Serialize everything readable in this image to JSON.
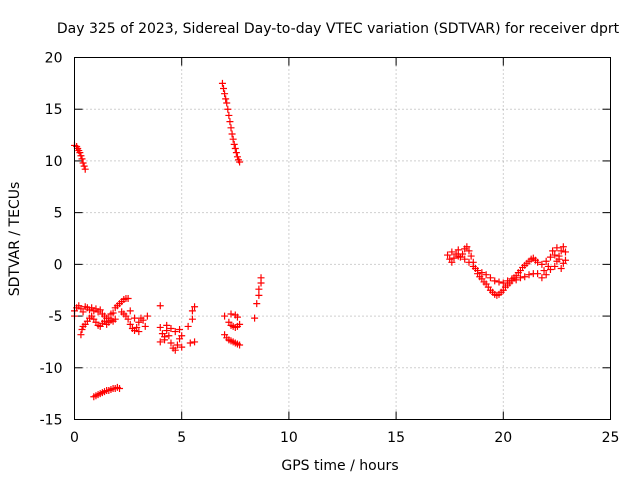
{
  "chart_data": {
    "type": "scatter",
    "title": "Day 325 of 2023, Sidereal Day-to-day VTEC variation (SDTVAR) for receiver dprt",
    "xlabel": "GPS time / hours",
    "ylabel": "SDTVAR / TECUs",
    "xlim": [
      0,
      25
    ],
    "ylim": [
      -15,
      20
    ],
    "xticks": [
      0,
      5,
      10,
      15,
      20,
      25
    ],
    "yticks": [
      -15,
      -10,
      -5,
      0,
      5,
      10,
      15,
      20
    ],
    "grid": true,
    "marker": "+",
    "color": "#ff0000",
    "series": [
      {
        "name": "SDTVAR",
        "points": [
          [
            0.0,
            11.5
          ],
          [
            0.1,
            11.4
          ],
          [
            0.15,
            11.2
          ],
          [
            0.2,
            11.0
          ],
          [
            0.25,
            10.8
          ],
          [
            0.3,
            10.5
          ],
          [
            0.35,
            10.2
          ],
          [
            0.4,
            9.8
          ],
          [
            0.45,
            9.5
          ],
          [
            0.5,
            9.2
          ],
          [
            0.0,
            -4.5
          ],
          [
            0.0,
            -5.0
          ],
          [
            0.1,
            -4.2
          ],
          [
            0.2,
            -4.0
          ],
          [
            0.3,
            -4.3
          ],
          [
            0.4,
            -4.6
          ],
          [
            0.5,
            -4.1
          ],
          [
            0.6,
            -4.2
          ],
          [
            0.7,
            -4.4
          ],
          [
            0.8,
            -4.2
          ],
          [
            0.9,
            -4.5
          ],
          [
            1.0,
            -4.3
          ],
          [
            1.1,
            -4.6
          ],
          [
            1.2,
            -4.4
          ],
          [
            1.3,
            -4.8
          ],
          [
            1.4,
            -5.0
          ],
          [
            1.5,
            -5.2
          ],
          [
            1.6,
            -5.6
          ],
          [
            1.7,
            -5.4
          ],
          [
            1.8,
            -4.7
          ],
          [
            1.9,
            -4.2
          ],
          [
            2.0,
            -4.0
          ],
          [
            2.1,
            -3.8
          ],
          [
            2.2,
            -3.6
          ],
          [
            2.3,
            -3.4
          ],
          [
            2.4,
            -3.3
          ],
          [
            2.5,
            -3.3
          ],
          [
            0.3,
            -6.8
          ],
          [
            0.35,
            -6.3
          ],
          [
            0.4,
            -6.0
          ],
          [
            0.5,
            -5.8
          ],
          [
            0.6,
            -5.5
          ],
          [
            0.7,
            -5.2
          ],
          [
            0.8,
            -5.0
          ],
          [
            0.9,
            -5.3
          ],
          [
            1.0,
            -5.6
          ],
          [
            1.1,
            -5.9
          ],
          [
            1.2,
            -6.0
          ],
          [
            1.3,
            -5.7
          ],
          [
            1.4,
            -5.5
          ],
          [
            1.5,
            -5.8
          ],
          [
            1.6,
            -5.2
          ],
          [
            1.7,
            -4.8
          ],
          [
            1.8,
            -5.5
          ],
          [
            1.9,
            -5.3
          ],
          [
            2.2,
            -4.6
          ],
          [
            2.3,
            -4.8
          ],
          [
            2.4,
            -5.0
          ],
          [
            2.5,
            -5.3
          ],
          [
            2.6,
            -5.8
          ],
          [
            2.7,
            -6.2
          ],
          [
            2.8,
            -6.4
          ],
          [
            2.9,
            -6.1
          ],
          [
            3.0,
            -5.6
          ],
          [
            3.1,
            -5.2
          ],
          [
            3.2,
            -5.4
          ],
          [
            3.3,
            -6.0
          ],
          [
            3.4,
            -5.0
          ],
          [
            2.6,
            -4.5
          ],
          [
            2.8,
            -5.2
          ],
          [
            3.0,
            -6.5
          ],
          [
            0.9,
            -12.8
          ],
          [
            1.0,
            -12.7
          ],
          [
            1.1,
            -12.6
          ],
          [
            1.2,
            -12.5
          ],
          [
            1.3,
            -12.4
          ],
          [
            1.4,
            -12.3
          ],
          [
            1.5,
            -12.2
          ],
          [
            1.6,
            -12.2
          ],
          [
            1.7,
            -12.1
          ],
          [
            1.8,
            -12.0
          ],
          [
            1.9,
            -12.0
          ],
          [
            2.0,
            -11.9
          ],
          [
            2.1,
            -12.0
          ],
          [
            4.0,
            -4.0
          ],
          [
            4.0,
            -6.1
          ],
          [
            4.1,
            -6.7
          ],
          [
            4.2,
            -7.0
          ],
          [
            4.3,
            -6.4
          ],
          [
            4.4,
            -6.9
          ],
          [
            4.5,
            -7.6
          ],
          [
            4.6,
            -8.1
          ],
          [
            4.7,
            -8.3
          ],
          [
            4.8,
            -7.8
          ],
          [
            4.9,
            -7.2
          ],
          [
            4.9,
            -6.3
          ],
          [
            5.0,
            -6.9
          ],
          [
            5.0,
            -8.0
          ],
          [
            4.0,
            -7.5
          ],
          [
            4.2,
            -7.3
          ],
          [
            4.3,
            -5.9
          ],
          [
            4.5,
            -6.2
          ],
          [
            4.7,
            -6.5
          ],
          [
            5.3,
            -6.0
          ],
          [
            5.4,
            -7.6
          ],
          [
            5.5,
            -4.5
          ],
          [
            5.5,
            -5.3
          ],
          [
            5.6,
            -4.1
          ],
          [
            5.6,
            -7.5
          ],
          [
            6.9,
            17.5
          ],
          [
            6.95,
            17.0
          ],
          [
            7.0,
            16.5
          ],
          [
            7.05,
            16.0
          ],
          [
            7.1,
            15.6
          ],
          [
            7.15,
            15.0
          ],
          [
            7.2,
            14.4
          ],
          [
            7.25,
            13.8
          ],
          [
            7.3,
            13.2
          ],
          [
            7.35,
            12.6
          ],
          [
            7.4,
            12.1
          ],
          [
            7.45,
            11.6
          ],
          [
            7.5,
            11.2
          ],
          [
            7.55,
            10.8
          ],
          [
            7.6,
            10.4
          ],
          [
            7.65,
            10.1
          ],
          [
            7.7,
            9.9
          ],
          [
            7.0,
            -5.0
          ],
          [
            7.0,
            -6.8
          ],
          [
            7.1,
            -7.1
          ],
          [
            7.2,
            -7.3
          ],
          [
            7.3,
            -7.4
          ],
          [
            7.4,
            -7.5
          ],
          [
            7.5,
            -7.6
          ],
          [
            7.6,
            -7.7
          ],
          [
            7.7,
            -7.8
          ],
          [
            7.2,
            -5.6
          ],
          [
            7.3,
            -5.9
          ],
          [
            7.4,
            -6.0
          ],
          [
            7.5,
            -6.1
          ],
          [
            7.6,
            -6.0
          ],
          [
            7.7,
            -5.8
          ],
          [
            7.3,
            -4.8
          ],
          [
            7.5,
            -4.9
          ],
          [
            7.6,
            -5.1
          ],
          [
            8.4,
            -5.2
          ],
          [
            8.5,
            -3.8
          ],
          [
            8.6,
            -3.0
          ],
          [
            8.6,
            -2.4
          ],
          [
            8.7,
            -1.8
          ],
          [
            8.7,
            -1.3
          ],
          [
            17.4,
            0.9
          ],
          [
            17.5,
            0.5
          ],
          [
            17.6,
            0.2
          ],
          [
            17.7,
            0.6
          ],
          [
            17.8,
            1.0
          ],
          [
            17.9,
            0.8
          ],
          [
            18.0,
            0.7
          ],
          [
            18.1,
            1.0
          ],
          [
            18.2,
            1.5
          ],
          [
            18.3,
            1.7
          ],
          [
            18.4,
            1.3
          ],
          [
            18.5,
            0.8
          ],
          [
            18.6,
            0.2
          ],
          [
            18.7,
            -0.4
          ],
          [
            18.8,
            -0.9
          ],
          [
            18.9,
            -1.2
          ],
          [
            19.0,
            -1.4
          ],
          [
            19.1,
            -1.7
          ],
          [
            19.2,
            -1.9
          ],
          [
            19.3,
            -2.2
          ],
          [
            19.4,
            -2.5
          ],
          [
            19.5,
            -2.7
          ],
          [
            19.6,
            -2.9
          ],
          [
            19.7,
            -3.0
          ],
          [
            19.8,
            -2.9
          ],
          [
            19.9,
            -2.7
          ],
          [
            20.0,
            -2.5
          ],
          [
            20.1,
            -2.2
          ],
          [
            20.2,
            -2.0
          ],
          [
            20.3,
            -1.8
          ],
          [
            20.4,
            -1.6
          ],
          [
            20.5,
            -1.3
          ],
          [
            20.6,
            -1.1
          ],
          [
            20.7,
            -0.8
          ],
          [
            20.8,
            -0.6
          ],
          [
            20.9,
            -0.3
          ],
          [
            21.0,
            -0.1
          ],
          [
            21.1,
            0.1
          ],
          [
            21.2,
            0.3
          ],
          [
            21.3,
            0.5
          ],
          [
            21.4,
            0.6
          ],
          [
            17.6,
            1.2
          ],
          [
            17.9,
            1.4
          ],
          [
            18.2,
            0.5
          ],
          [
            18.4,
            0.2
          ],
          [
            18.6,
            -0.2
          ],
          [
            18.8,
            -0.6
          ],
          [
            19.0,
            -0.8
          ],
          [
            19.2,
            -1.0
          ],
          [
            19.4,
            -1.3
          ],
          [
            19.6,
            -1.6
          ],
          [
            19.8,
            -1.7
          ],
          [
            20.0,
            -1.8
          ],
          [
            20.2,
            -1.6
          ],
          [
            20.4,
            -1.4
          ],
          [
            20.6,
            -1.5
          ],
          [
            20.8,
            -1.3
          ],
          [
            21.0,
            -1.2
          ],
          [
            21.2,
            -1.0
          ],
          [
            21.4,
            -0.9
          ],
          [
            21.6,
            -0.9
          ],
          [
            21.8,
            -1.3
          ],
          [
            22.0,
            -1.0
          ],
          [
            22.2,
            -0.5
          ],
          [
            22.4,
            -0.2
          ],
          [
            22.5,
            0.3
          ],
          [
            22.6,
            0.8
          ],
          [
            22.7,
            1.3
          ],
          [
            22.8,
            1.7
          ],
          [
            22.9,
            1.2
          ],
          [
            22.8,
            0.1
          ],
          [
            22.7,
            -0.4
          ],
          [
            22.6,
            0.5
          ],
          [
            22.4,
            0.9
          ],
          [
            22.2,
            0.7
          ],
          [
            22.0,
            0.3
          ],
          [
            21.8,
            0.0
          ],
          [
            21.6,
            0.2
          ],
          [
            21.5,
            0.4
          ],
          [
            22.3,
            1.3
          ],
          [
            22.5,
            1.6
          ],
          [
            22.9,
            0.4
          ],
          [
            22.1,
            -0.2
          ],
          [
            21.9,
            -0.6
          ]
        ]
      }
    ]
  }
}
